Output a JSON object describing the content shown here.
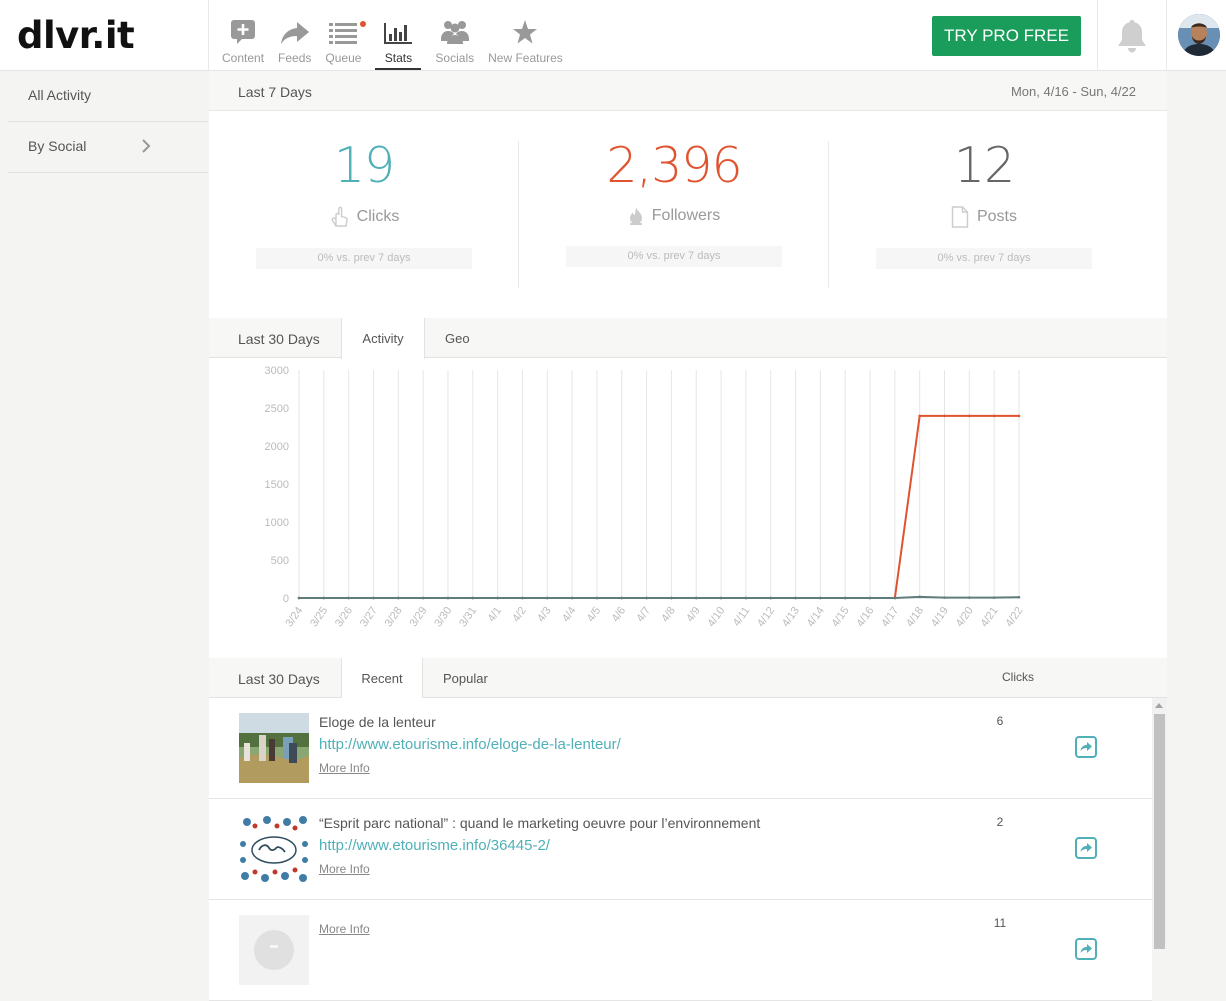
{
  "app": {
    "logo": "dlvr.it"
  },
  "nav": [
    {
      "label": "Content",
      "icon": "content-plus-icon"
    },
    {
      "label": "Feeds",
      "icon": "share-arrow-icon"
    },
    {
      "label": "Queue",
      "icon": "queue-list-icon"
    },
    {
      "label": "Stats",
      "icon": "bar-chart-icon"
    },
    {
      "label": "Socials",
      "icon": "people-icon"
    },
    {
      "label": "New Features",
      "icon": "star-icon"
    }
  ],
  "pro_button": "TRY PRO FREE",
  "sidebar": {
    "all_activity": "All Activity",
    "by_social": "By Social"
  },
  "summary": {
    "period": "Last 7 Days",
    "range": "Mon, 4/16 - Sun, 4/22",
    "stats": [
      {
        "value": "19",
        "label": "Clicks",
        "compare": "0% vs. prev 7 days",
        "color": "#4fb0b8"
      },
      {
        "value": "2,396",
        "label": "Followers",
        "compare": "0% vs. prev 7 days",
        "color": "#e0532f"
      },
      {
        "value": "12",
        "label": "Posts",
        "compare": "0% vs. prev 7 days",
        "color": "#666666"
      }
    ]
  },
  "chart_tabs": {
    "period": "Last 30 Days",
    "activity": "Activity",
    "geo": "Geo"
  },
  "chart_data": {
    "type": "line",
    "categories": [
      "3/24",
      "3/25",
      "3/26",
      "3/27",
      "3/28",
      "3/29",
      "3/30",
      "3/31",
      "4/1",
      "4/2",
      "4/3",
      "4/4",
      "4/5",
      "4/6",
      "4/7",
      "4/8",
      "4/9",
      "4/10",
      "4/11",
      "4/12",
      "4/13",
      "4/14",
      "4/15",
      "4/16",
      "4/17",
      "4/18",
      "4/19",
      "4/20",
      "4/21",
      "4/22"
    ],
    "y_ticks": [
      "3000",
      "2500",
      "2000",
      "1500",
      "1000",
      "500",
      "0"
    ],
    "ylim": [
      0,
      3000
    ],
    "grid": "vertical",
    "series": [
      {
        "color": "#e0532f",
        "values": [
          0,
          0,
          0,
          0,
          0,
          0,
          0,
          0,
          0,
          0,
          0,
          0,
          0,
          0,
          0,
          0,
          0,
          0,
          0,
          0,
          0,
          0,
          0,
          0,
          0,
          2396,
          2396,
          2396,
          2396,
          2396
        ]
      },
      {
        "color": "#5f7d7c",
        "values": [
          0,
          0,
          0,
          0,
          0,
          0,
          0,
          0,
          0,
          0,
          0,
          0,
          0,
          0,
          0,
          0,
          0,
          0,
          0,
          0,
          0,
          0,
          0,
          0,
          0,
          15,
          5,
          5,
          5,
          10
        ]
      }
    ]
  },
  "list_tabs": {
    "period": "Last 30 Days",
    "recent": "Recent",
    "popular": "Popular",
    "clicks_header": "Clicks"
  },
  "posts": [
    {
      "title": "Eloge de la lenteur",
      "url": "http://www.etourisme.info/eloge-de-la-lenteur/",
      "more": "More Info",
      "clicks": "6"
    },
    {
      "title": "“Esprit parc national” : quand le marketing oeuvre pour l’environnement",
      "url": "http://www.etourisme.info/36445-2/",
      "more": "More Info",
      "clicks": "2"
    },
    {
      "title": "",
      "url": "",
      "more": "More Info",
      "clicks": "11"
    }
  ]
}
